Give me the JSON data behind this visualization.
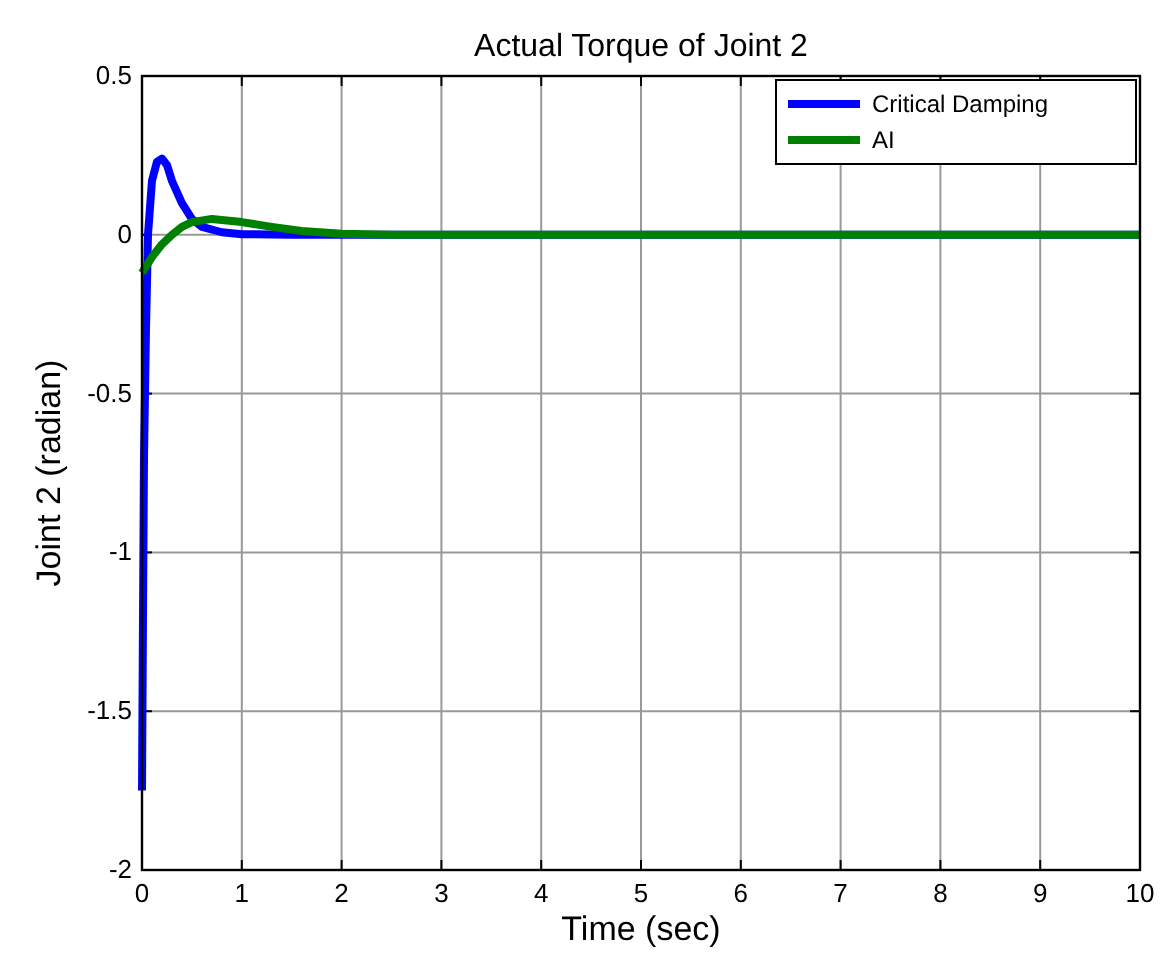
{
  "chart_data": {
    "type": "line",
    "title": "Actual Torque  of Joint 2",
    "xlabel": "Time (sec)",
    "ylabel": "Joint 2 (radian)",
    "xlim": [
      0,
      10
    ],
    "xticks": [
      0,
      1,
      2,
      3,
      4,
      5,
      6,
      7,
      8,
      9,
      10
    ],
    "ylim": [
      -2,
      0.5
    ],
    "yticks": [
      -2,
      -1.5,
      -1,
      -0.5,
      0,
      0.5
    ],
    "grid": true,
    "legend": "top right",
    "line_style": "solid",
    "marker": "none",
    "series": [
      {
        "name": "Critical Damping",
        "color": "#0000ff",
        "x": [
          0,
          0.01,
          0.02,
          0.04,
          0.06,
          0.1,
          0.15,
          0.2,
          0.25,
          0.3,
          0.4,
          0.5,
          0.6,
          0.8,
          1,
          1.5,
          10
        ],
        "values": [
          -1.75,
          -1.2,
          -0.7,
          -0.3,
          0,
          0.17,
          0.23,
          0.24,
          0.22,
          0.17,
          0.1,
          0.05,
          0.025,
          0.008,
          0.002,
          0,
          0
        ]
      },
      {
        "name": "AI",
        "color": "#008000",
        "x": [
          0,
          0.1,
          0.2,
          0.3,
          0.4,
          0.5,
          0.7,
          1,
          1.3,
          1.6,
          2,
          2.5,
          10
        ],
        "values": [
          -0.12,
          -0.07,
          -0.03,
          0,
          0.025,
          0.04,
          0.05,
          0.04,
          0.025,
          0.012,
          0.003,
          0,
          0
        ]
      }
    ]
  }
}
